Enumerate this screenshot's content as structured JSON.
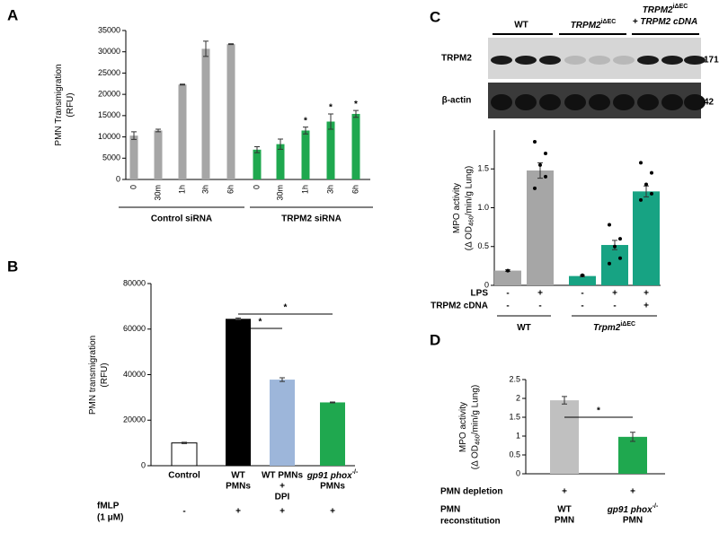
{
  "chart_data": [
    {
      "panel": "A",
      "type": "bar",
      "ylabel": [
        "PMN Transmigration",
        "(RFU)"
      ],
      "ylim": [
        0,
        35000
      ],
      "yticks": [
        0,
        5000,
        10000,
        15000,
        20000,
        25000,
        30000,
        35000
      ],
      "series": [
        {
          "name": "Control siRNA",
          "color": "#a6a6a6",
          "categories": [
            "0",
            "30m",
            "1h",
            "3h",
            "6h"
          ],
          "values": [
            10300,
            11500,
            22300,
            30700,
            31800
          ],
          "errors": [
            900,
            300,
            100,
            1800,
            100
          ],
          "annotations": [
            null,
            null,
            null,
            null,
            null
          ]
        },
        {
          "name": "TRPM2 siRNA",
          "color": "#1fa84f",
          "categories": [
            "0",
            "30m",
            "1h",
            "3h",
            "6h"
          ],
          "values": [
            7000,
            8300,
            11500,
            13600,
            15400
          ],
          "errors": [
            700,
            1200,
            800,
            1800,
            800
          ],
          "annotations": [
            null,
            null,
            "*",
            "*",
            "*"
          ]
        }
      ]
    },
    {
      "panel": "B",
      "type": "bar",
      "ylabel": [
        "PMN transmigration",
        "(RFU)"
      ],
      "ylim": [
        0,
        80000
      ],
      "yticks": [
        0,
        20000,
        40000,
        60000,
        80000
      ],
      "categories": [
        [
          "Control"
        ],
        [
          "WT",
          "PMNs"
        ],
        [
          "WT PMNs",
          "+",
          "DPI"
        ],
        [
          [
            {
              "i": "gp91 phox"
            },
            {
              "sup": "-/-"
            }
          ],
          "PMNs"
        ]
      ],
      "values": [
        10000,
        64500,
        37800,
        27800
      ],
      "errors": [
        300,
        400,
        800,
        200
      ],
      "colors": [
        "#ffffff",
        "#000000",
        "#9db6da",
        "#1fa84f"
      ],
      "significance": [
        {
          "from": 1,
          "to": 2,
          "label": "*"
        },
        {
          "from": 1,
          "to": 3,
          "label": "*"
        }
      ],
      "rows": [
        {
          "label": [
            "fMLP",
            "(1 μM)"
          ],
          "values": [
            "-",
            "+",
            "+",
            "+"
          ]
        }
      ]
    },
    {
      "panel": "C",
      "type": "bar",
      "blot": {
        "columns": [
          [
            "WT"
          ],
          [
            [
              {
                "i": "TRPM2"
              },
              {
                "sup": "iΔEC"
              }
            ]
          ],
          [
            [
              {
                "i": "TRPM2"
              },
              {
                "sup": "iΔEC"
              }
            ],
            [
              {
                "i": "+ TRPM2 cDNA"
              }
            ]
          ]
        ],
        "bands": [
          {
            "name": "TRPM2",
            "size": "171"
          },
          {
            "name": "β-actin",
            "size": "42"
          }
        ]
      },
      "ylabel": [
        "MPO activity",
        [
          "(Δ OD",
          {
            "sub": "460"
          },
          "/min/g Lung)"
        ]
      ],
      "ylim": [
        0,
        2
      ],
      "yticks": [
        0,
        0.5,
        {
          "value": 1,
          "label": "1.0"
        },
        1.5
      ],
      "values": [
        0.19,
        1.48,
        0.12,
        0.52,
        1.21
      ],
      "errors": [
        0.01,
        0.1,
        0.01,
        0.06,
        0.07
      ],
      "colors": [
        "#a6a6a6",
        "#a6a6a6",
        "#17a383",
        "#17a383",
        "#17a383"
      ],
      "points": [
        [
          0.19
        ],
        [
          1.85,
          1.7,
          1.55,
          1.4,
          1.25
        ],
        [
          0.13
        ],
        [
          0.78,
          0.6,
          0.5,
          0.35,
          0.28
        ],
        [
          1.58,
          1.45,
          1.3,
          1.18,
          1.1
        ]
      ],
      "rows": [
        {
          "label": [
            "LPS"
          ],
          "values": [
            "-",
            "+",
            "-",
            "+",
            "+"
          ]
        },
        {
          "label": [
            "TRPM2 cDNA"
          ],
          "values": [
            "-",
            "-",
            "-",
            "-",
            "+"
          ]
        }
      ],
      "groups": [
        {
          "name": [
            [
              "WT"
            ]
          ],
          "from": 0,
          "to": 1
        },
        {
          "name": [
            [
              {
                "i": "Trpm2"
              },
              {
                "sup": "iΔEC"
              }
            ]
          ],
          "from": 2,
          "to": 4
        }
      ]
    },
    {
      "panel": "D",
      "type": "bar",
      "ylabel": [
        "MPO activity",
        [
          "(Δ OD",
          {
            "sub": "460"
          },
          "/min/g Lung)"
        ]
      ],
      "ylim": [
        0,
        2.5
      ],
      "yticks": [
        0,
        0.5,
        1,
        1.5,
        2,
        2.5
      ],
      "categories": [
        [
          "WT",
          "PMN"
        ],
        [
          [
            {
              "i": "gp91 phox"
            },
            {
              "sup": "-/-"
            }
          ],
          "PMN"
        ]
      ],
      "values": [
        1.95,
        0.98
      ],
      "errors": [
        0.1,
        0.12
      ],
      "colors": [
        "#c0c0c0",
        "#1fa84f"
      ],
      "significance": [
        {
          "from": 0,
          "to": 1,
          "label": "*"
        }
      ],
      "rows": [
        {
          "label": [
            "PMN depletion"
          ],
          "values": [
            "+",
            "+"
          ]
        },
        {
          "label": [
            "PMN",
            "reconstitution"
          ]
        }
      ]
    }
  ]
}
